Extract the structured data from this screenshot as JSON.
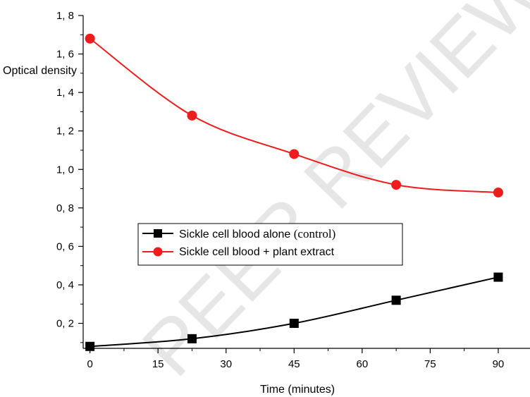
{
  "chart_data": {
    "type": "line",
    "xlabel": "Time (minutes)",
    "ylabel": "Optical density",
    "xlim": [
      -1.5,
      97
    ],
    "ylim": [
      0.07,
      1.8
    ],
    "x_ticks": [
      0,
      15,
      30,
      45,
      60,
      75,
      90
    ],
    "x_tick_labels": [
      "0",
      "15",
      "30",
      "45",
      "60",
      "75",
      "90"
    ],
    "y_ticks": [
      0.2,
      0.4,
      0.6,
      0.8,
      1.0,
      1.2,
      1.4,
      1.6,
      1.8
    ],
    "y_tick_labels": [
      "0, 2",
      "0, 4",
      "0, 6",
      "0, 8",
      "1, 0",
      "1, 2",
      "1, 4",
      "1, 6",
      "1, 8"
    ],
    "grid": false,
    "legend_position": "center-left",
    "watermark": "PEER REVIEW",
    "series": [
      {
        "name": "Sickle cell blood alone (control)",
        "name_main": "Sickle cell blood alone ",
        "name_tail": "(control)",
        "color": "#000000",
        "marker": "square",
        "x": [
          0,
          22.5,
          45,
          67.5,
          90
        ],
        "values": [
          0.08,
          0.12,
          0.2,
          0.32,
          0.44
        ]
      },
      {
        "name": "Sickle cell blood + plant extract",
        "color": "#ee1c1c",
        "marker": "circle",
        "x": [
          0,
          22.5,
          45,
          67.5,
          90
        ],
        "values": [
          1.68,
          1.28,
          1.08,
          0.92,
          0.88
        ]
      }
    ]
  }
}
